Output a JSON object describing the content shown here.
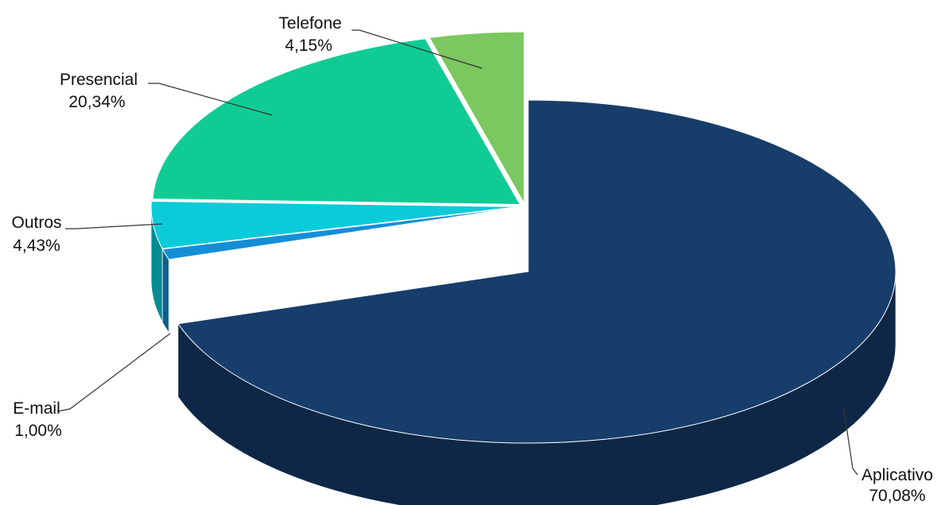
{
  "chart_data": {
    "type": "pie",
    "style": "3d-exploded",
    "slices": [
      {
        "label": "Aplicativo",
        "value_text": "70,08%",
        "value": 70.08,
        "color": "#173d6b",
        "side_color": "#0e2746"
      },
      {
        "label": "E-mail",
        "value_text": "1,00%",
        "value": 1.0,
        "color": "#138fd6",
        "side_color": "#0b5f8f"
      },
      {
        "label": "Outros",
        "value_text": "4,43%",
        "value": 4.43,
        "color": "#0ccbd9",
        "side_color": "#078a93"
      },
      {
        "label": "Presencial",
        "value_text": "20,34%",
        "value": 20.34,
        "color": "#10cc94",
        "side_color": "#0a8a64"
      },
      {
        "label": "Telefone",
        "value_text": "4,15%",
        "value": 4.15,
        "color": "#7bc760",
        "side_color": "#538a40"
      }
    ]
  }
}
